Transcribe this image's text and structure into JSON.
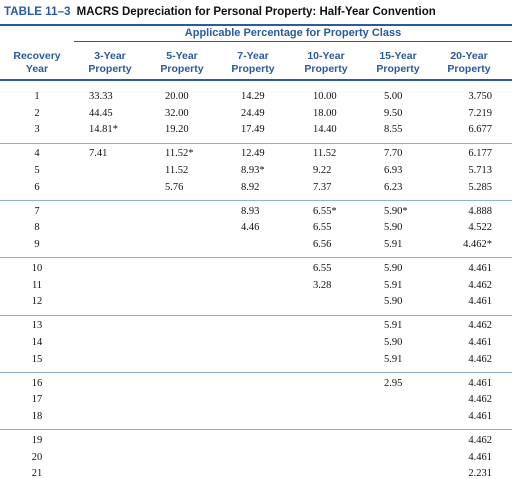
{
  "title": {
    "number": "TABLE 11–3",
    "text": "MACRS Depreciation for Personal Property: Half-Year Convention"
  },
  "span_header": "Applicable Percentage for Property Class",
  "column_headers": [
    {
      "line1": "Recovery",
      "line2": "Year"
    },
    {
      "line1": "3-Year",
      "line2": "Property"
    },
    {
      "line1": "5-Year",
      "line2": "Property"
    },
    {
      "line1": "7-Year",
      "line2": "Property"
    },
    {
      "line1": "10-Year",
      "line2": "Property"
    },
    {
      "line1": "15-Year",
      "line2": "Property"
    },
    {
      "line1": "20-Year",
      "line2": "Property"
    }
  ],
  "rows": [
    [
      "1",
      "33.33",
      "20.00",
      "14.29",
      "10.00",
      "5.00",
      "3.750"
    ],
    [
      "2",
      "44.45",
      "32.00",
      "24.49",
      "18.00",
      "9.50",
      "7.219"
    ],
    [
      "3",
      "14.81*",
      "19.20",
      "17.49",
      "14.40",
      "8.55",
      "6.677"
    ],
    [
      "4",
      "7.41",
      "11.52*",
      "12.49",
      "11.52",
      "7.70",
      "6.177"
    ],
    [
      "5",
      "",
      "11.52",
      "8.93*",
      "9.22",
      "6.93",
      "5.713"
    ],
    [
      "6",
      "",
      "5.76",
      "8.92",
      "7.37",
      "6.23",
      "5.285"
    ],
    [
      "7",
      "",
      "",
      "8.93",
      "6.55*",
      "5.90*",
      "4.888"
    ],
    [
      "8",
      "",
      "",
      "4.46",
      "6.55",
      "5.90",
      "4.522"
    ],
    [
      "9",
      "",
      "",
      "",
      "6.56",
      "5.91",
      "4.462*"
    ],
    [
      "10",
      "",
      "",
      "",
      "6.55",
      "5.90",
      "4.461"
    ],
    [
      "11",
      "",
      "",
      "",
      "3.28",
      "5.91",
      "4.462"
    ],
    [
      "12",
      "",
      "",
      "",
      "",
      "5.90",
      "4.461"
    ],
    [
      "13",
      "",
      "",
      "",
      "",
      "5.91",
      "4.462"
    ],
    [
      "14",
      "",
      "",
      "",
      "",
      "5.90",
      "4.461"
    ],
    [
      "15",
      "",
      "",
      "",
      "",
      "5.91",
      "4.462"
    ],
    [
      "16",
      "",
      "",
      "",
      "",
      "2.95",
      "4.461"
    ],
    [
      "17",
      "",
      "",
      "",
      "",
      "",
      "4.462"
    ],
    [
      "18",
      "",
      "",
      "",
      "",
      "",
      "4.461"
    ],
    [
      "19",
      "",
      "",
      "",
      "",
      "",
      "4.462"
    ],
    [
      "20",
      "",
      "",
      "",
      "",
      "",
      "4.461"
    ],
    [
      "21",
      "",
      "",
      "",
      "",
      "",
      "2.231"
    ]
  ]
}
